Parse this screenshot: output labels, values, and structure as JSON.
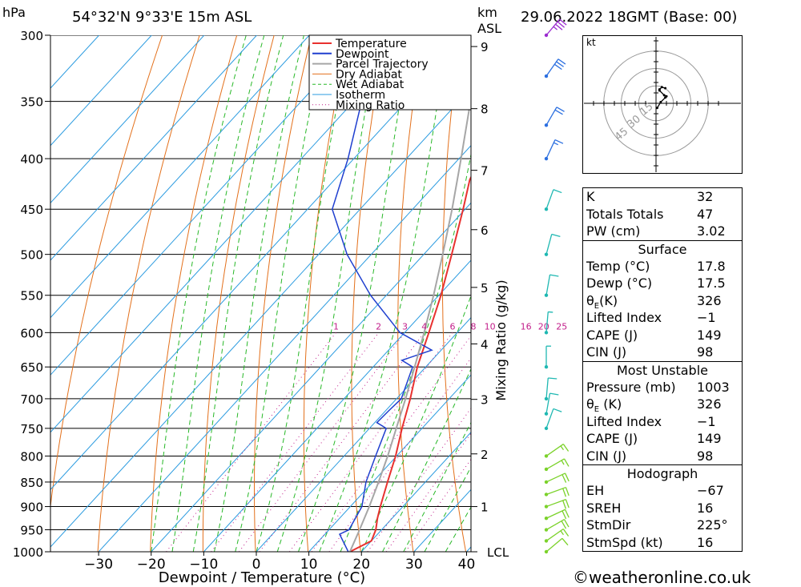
{
  "header": {
    "unit_left": "hPa",
    "location": "54°32'N  9°33'E  15m  ASL",
    "unit_km": "km",
    "unit_asl": "ASL",
    "datetime": "29.06.2022  18GMT  (Base: 00)"
  },
  "chart_data": {
    "type": "line",
    "title": "",
    "xlabel": "Dewpoint / Temperature (°C)",
    "ylabel": "hPa",
    "right_axis_label": "Mixing Ratio (g/kg)",
    "x_ticks": [
      -30,
      -20,
      -10,
      0,
      10,
      20,
      30,
      40
    ],
    "xlim": [
      -40,
      40
    ],
    "ylim": [
      1000,
      300
    ],
    "pressure_levels": [
      300,
      350,
      400,
      450,
      500,
      550,
      600,
      650,
      700,
      750,
      800,
      850,
      900,
      950,
      1000
    ],
    "km_ticks": [
      {
        "km": "1",
        "p": 900
      },
      {
        "km": "2",
        "p": 796
      },
      {
        "km": "3",
        "p": 701
      },
      {
        "km": "4",
        "p": 616
      },
      {
        "km": "5",
        "p": 540
      },
      {
        "km": "6",
        "p": 472
      },
      {
        "km": "7",
        "p": 411
      },
      {
        "km": "8",
        "p": 356
      },
      {
        "km": "9",
        "p": 308
      }
    ],
    "lcl_label": "LCL",
    "mixing_ratio_labels": [
      "1",
      "2",
      "3",
      "4",
      "6",
      "8",
      "10",
      "16",
      "20",
      "25"
    ],
    "mixing_ratio_values": [
      1,
      2,
      3,
      4,
      6,
      8,
      10,
      16,
      20,
      25
    ],
    "legend": [
      "Temperature",
      "Dewpoint",
      "Parcel Trajectory",
      "Dry Adiabat",
      "Wet Adiabat",
      "Isotherm",
      "Mixing Ratio"
    ],
    "legend_position": "top-right",
    "colors": {
      "temperature": "#e8312f",
      "dewpoint": "#1f3fcf",
      "parcel": "#a6a6a6",
      "dry_adiabat": "#e3701b",
      "wet_adiabat": "#28b828",
      "isotherm": "#2b9be0",
      "mixing_ratio": "#c21e8a"
    },
    "series": [
      {
        "name": "Temperature",
        "points": [
          {
            "p": 1000,
            "t": 17.8
          },
          {
            "p": 975,
            "t": 20.0
          },
          {
            "p": 950,
            "t": 18.9
          },
          {
            "p": 925,
            "t": 17.2
          },
          {
            "p": 900,
            "t": 15.7
          },
          {
            "p": 850,
            "t": 12.8
          },
          {
            "p": 800,
            "t": 9.8
          },
          {
            "p": 750,
            "t": 6.2
          },
          {
            "p": 700,
            "t": 2.6
          },
          {
            "p": 650,
            "t": -1.6
          },
          {
            "p": 600,
            "t": -5.4
          },
          {
            "p": 550,
            "t": -9.6
          },
          {
            "p": 500,
            "t": -14.7
          },
          {
            "p": 450,
            "t": -20.4
          },
          {
            "p": 420,
            "t": -24.3
          },
          {
            "p": 400,
            "t": -25.9
          },
          {
            "p": 350,
            "t": -34.8
          },
          {
            "p": 300,
            "t": -44.5
          }
        ]
      },
      {
        "name": "Dewpoint",
        "points": [
          {
            "p": 1000,
            "t": 17.5
          },
          {
            "p": 960,
            "t": 12.8
          },
          {
            "p": 950,
            "t": 13.8
          },
          {
            "p": 900,
            "t": 12.2
          },
          {
            "p": 850,
            "t": 8.7
          },
          {
            "p": 800,
            "t": 6.0
          },
          {
            "p": 750,
            "t": 3.2
          },
          {
            "p": 740,
            "t": 0.4
          },
          {
            "p": 720,
            "t": 0.6
          },
          {
            "p": 700,
            "t": 0.9
          },
          {
            "p": 650,
            "t": -2.5
          },
          {
            "p": 640,
            "t": -5.7
          },
          {
            "p": 625,
            "t": -1.8
          },
          {
            "p": 600,
            "t": -10.9
          },
          {
            "p": 550,
            "t": -23.0
          },
          {
            "p": 500,
            "t": -34.6
          },
          {
            "p": 450,
            "t": -45.3
          },
          {
            "p": 400,
            "t": -51.1
          },
          {
            "p": 350,
            "t": -58.5
          },
          {
            "p": 310,
            "t": -64.8
          },
          {
            "p": 300,
            "t": -65.8
          }
        ]
      },
      {
        "name": "Parcel Trajectory",
        "points": [
          {
            "p": 1000,
            "t": 17.8
          },
          {
            "p": 950,
            "t": 15.8
          },
          {
            "p": 900,
            "t": 13.6
          },
          {
            "p": 850,
            "t": 11.1
          },
          {
            "p": 800,
            "t": 8.3
          },
          {
            "p": 750,
            "t": 5.1
          },
          {
            "p": 700,
            "t": 1.7
          },
          {
            "p": 650,
            "t": -2.1
          },
          {
            "p": 600,
            "t": -6.3
          },
          {
            "p": 550,
            "t": -11.0
          },
          {
            "p": 500,
            "t": -16.4
          },
          {
            "p": 450,
            "t": -22.5
          },
          {
            "p": 400,
            "t": -29.6
          },
          {
            "p": 350,
            "t": -37.8
          },
          {
            "p": 300,
            "t": -47.3
          }
        ]
      }
    ]
  },
  "hodograph": {
    "unit": "kt",
    "ring_labels": [
      "15",
      "30",
      "45"
    ],
    "points_kt": [
      {
        "u": 1,
        "v": -4
      },
      {
        "u": 4,
        "v": 1
      },
      {
        "u": 8,
        "v": 5
      },
      {
        "u": 9,
        "v": 6
      },
      {
        "u": 7,
        "v": 7
      },
      {
        "u": 3,
        "v": 11
      },
      {
        "u": 3,
        "v": 12
      },
      {
        "u": 5,
        "v": 14
      },
      {
        "u": 8,
        "v": 13
      }
    ]
  },
  "wind_barbs": [
    {
      "p": 1000,
      "dir": 230,
      "spd": 10
    },
    {
      "p": 975,
      "dir": 235,
      "spd": 15
    },
    {
      "p": 950,
      "dir": 240,
      "spd": 20
    },
    {
      "p": 925,
      "dir": 245,
      "spd": 20
    },
    {
      "p": 900,
      "dir": 250,
      "spd": 20
    },
    {
      "p": 875,
      "dir": 250,
      "spd": 20
    },
    {
      "p": 850,
      "dir": 245,
      "spd": 20
    },
    {
      "p": 825,
      "dir": 240,
      "spd": 15
    },
    {
      "p": 800,
      "dir": 235,
      "spd": 15
    },
    {
      "p": 750,
      "dir": 200,
      "spd": 10
    },
    {
      "p": 725,
      "dir": 190,
      "spd": 10
    },
    {
      "p": 700,
      "dir": 185,
      "spd": 10
    },
    {
      "p": 650,
      "dir": 180,
      "spd": 5
    },
    {
      "p": 600,
      "dir": 185,
      "spd": 5
    },
    {
      "p": 550,
      "dir": 190,
      "spd": 10
    },
    {
      "p": 500,
      "dir": 195,
      "spd": 10
    },
    {
      "p": 450,
      "dir": 200,
      "spd": 10
    },
    {
      "p": 400,
      "dir": 205,
      "spd": 15
    },
    {
      "p": 370,
      "dir": 210,
      "spd": 20
    },
    {
      "p": 330,
      "dir": 215,
      "spd": 30
    },
    {
      "p": 300,
      "dir": 220,
      "spd": 35
    }
  ],
  "indices": [
    {
      "label": "K",
      "value": "32"
    },
    {
      "label": "Totals Totals",
      "value": "47"
    },
    {
      "label": "PW (cm)",
      "value": "3.02"
    }
  ],
  "surface": {
    "title": "Surface",
    "rows": [
      {
        "label": "Temp (°C)",
        "value": "17.8"
      },
      {
        "label": "Dewp (°C)",
        "value": "17.5"
      },
      {
        "label": "θ",
        "sub": "E",
        "unit": "(K)",
        "value": "326"
      },
      {
        "label": "Lifted Index",
        "value": "−1"
      },
      {
        "label": "CAPE (J)",
        "value": "149"
      },
      {
        "label": "CIN (J)",
        "value": "98"
      }
    ]
  },
  "most_unstable": {
    "title": "Most Unstable",
    "rows": [
      {
        "label": "Pressure (mb)",
        "value": "1003"
      },
      {
        "label": "θ",
        "sub": "E",
        "unit": " (K)",
        "value": "326"
      },
      {
        "label": "Lifted Index",
        "value": "−1"
      },
      {
        "label": "CAPE (J)",
        "value": "149"
      },
      {
        "label": "CIN (J)",
        "value": "98"
      }
    ]
  },
  "hodo_table": {
    "title": "Hodograph",
    "rows": [
      {
        "label": "EH",
        "value": "−67"
      },
      {
        "label": "SREH",
        "value": "16"
      },
      {
        "label": "StmDir",
        "value": "225°"
      },
      {
        "label": "StmSpd (kt)",
        "value": "16"
      }
    ]
  },
  "copyright": "©weatheronline.co.uk"
}
